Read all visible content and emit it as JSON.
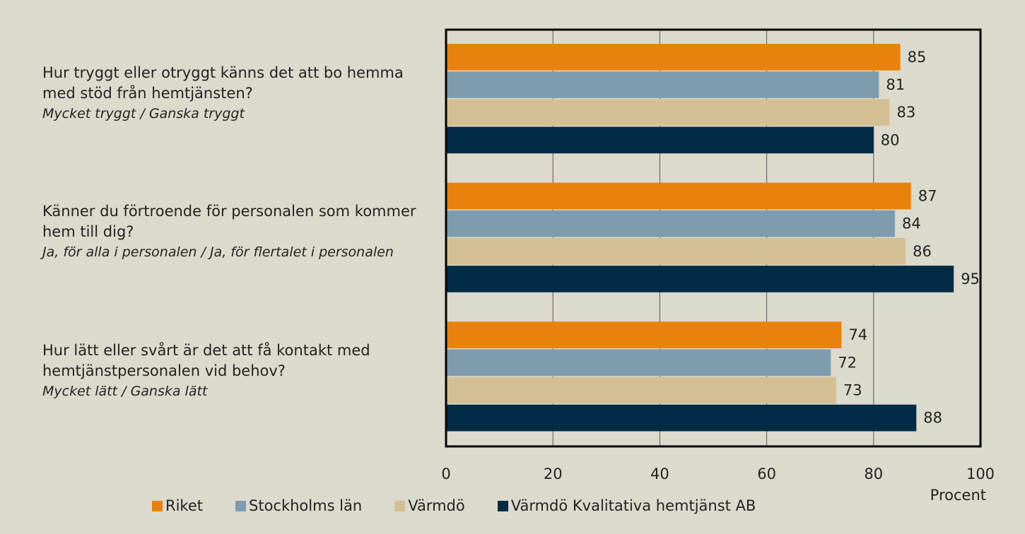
{
  "chart_data": {
    "type": "hbar",
    "categories": [
      "Hur tryggt eller otryggt känns det att bo hemma med stöd från hemtjänsten?",
      "Känner du förtroende för personalen som kommer hem till dig?",
      "Hur lätt eller svårt är det att få kontakt med hemtjänstpersonalen vid behov?"
    ],
    "category_notes": [
      "Mycket tryggt / Ganska tryggt",
      "Ja, för alla i personalen / Ja, för flertalet i personalen",
      "Mycket lätt / Ganska lätt"
    ],
    "series": [
      {
        "name": "Riket",
        "color": "#e8820c",
        "values": [
          85,
          87,
          74
        ]
      },
      {
        "name": "Stockholms län",
        "color": "#7f9cae",
        "values": [
          81,
          84,
          72
        ]
      },
      {
        "name": "Värmdö",
        "color": "#d4bf94",
        "values": [
          83,
          86,
          73
        ]
      },
      {
        "name": "Värmdö Kvalitativa hemtjänst AB",
        "color": "#002b45",
        "values": [
          80,
          95,
          88
        ]
      }
    ],
    "xlabel": "Procent",
    "xlim": [
      0,
      100
    ],
    "xticks": [
      0,
      20,
      40,
      60,
      80,
      100
    ],
    "grid": true,
    "legend": "bottom"
  }
}
